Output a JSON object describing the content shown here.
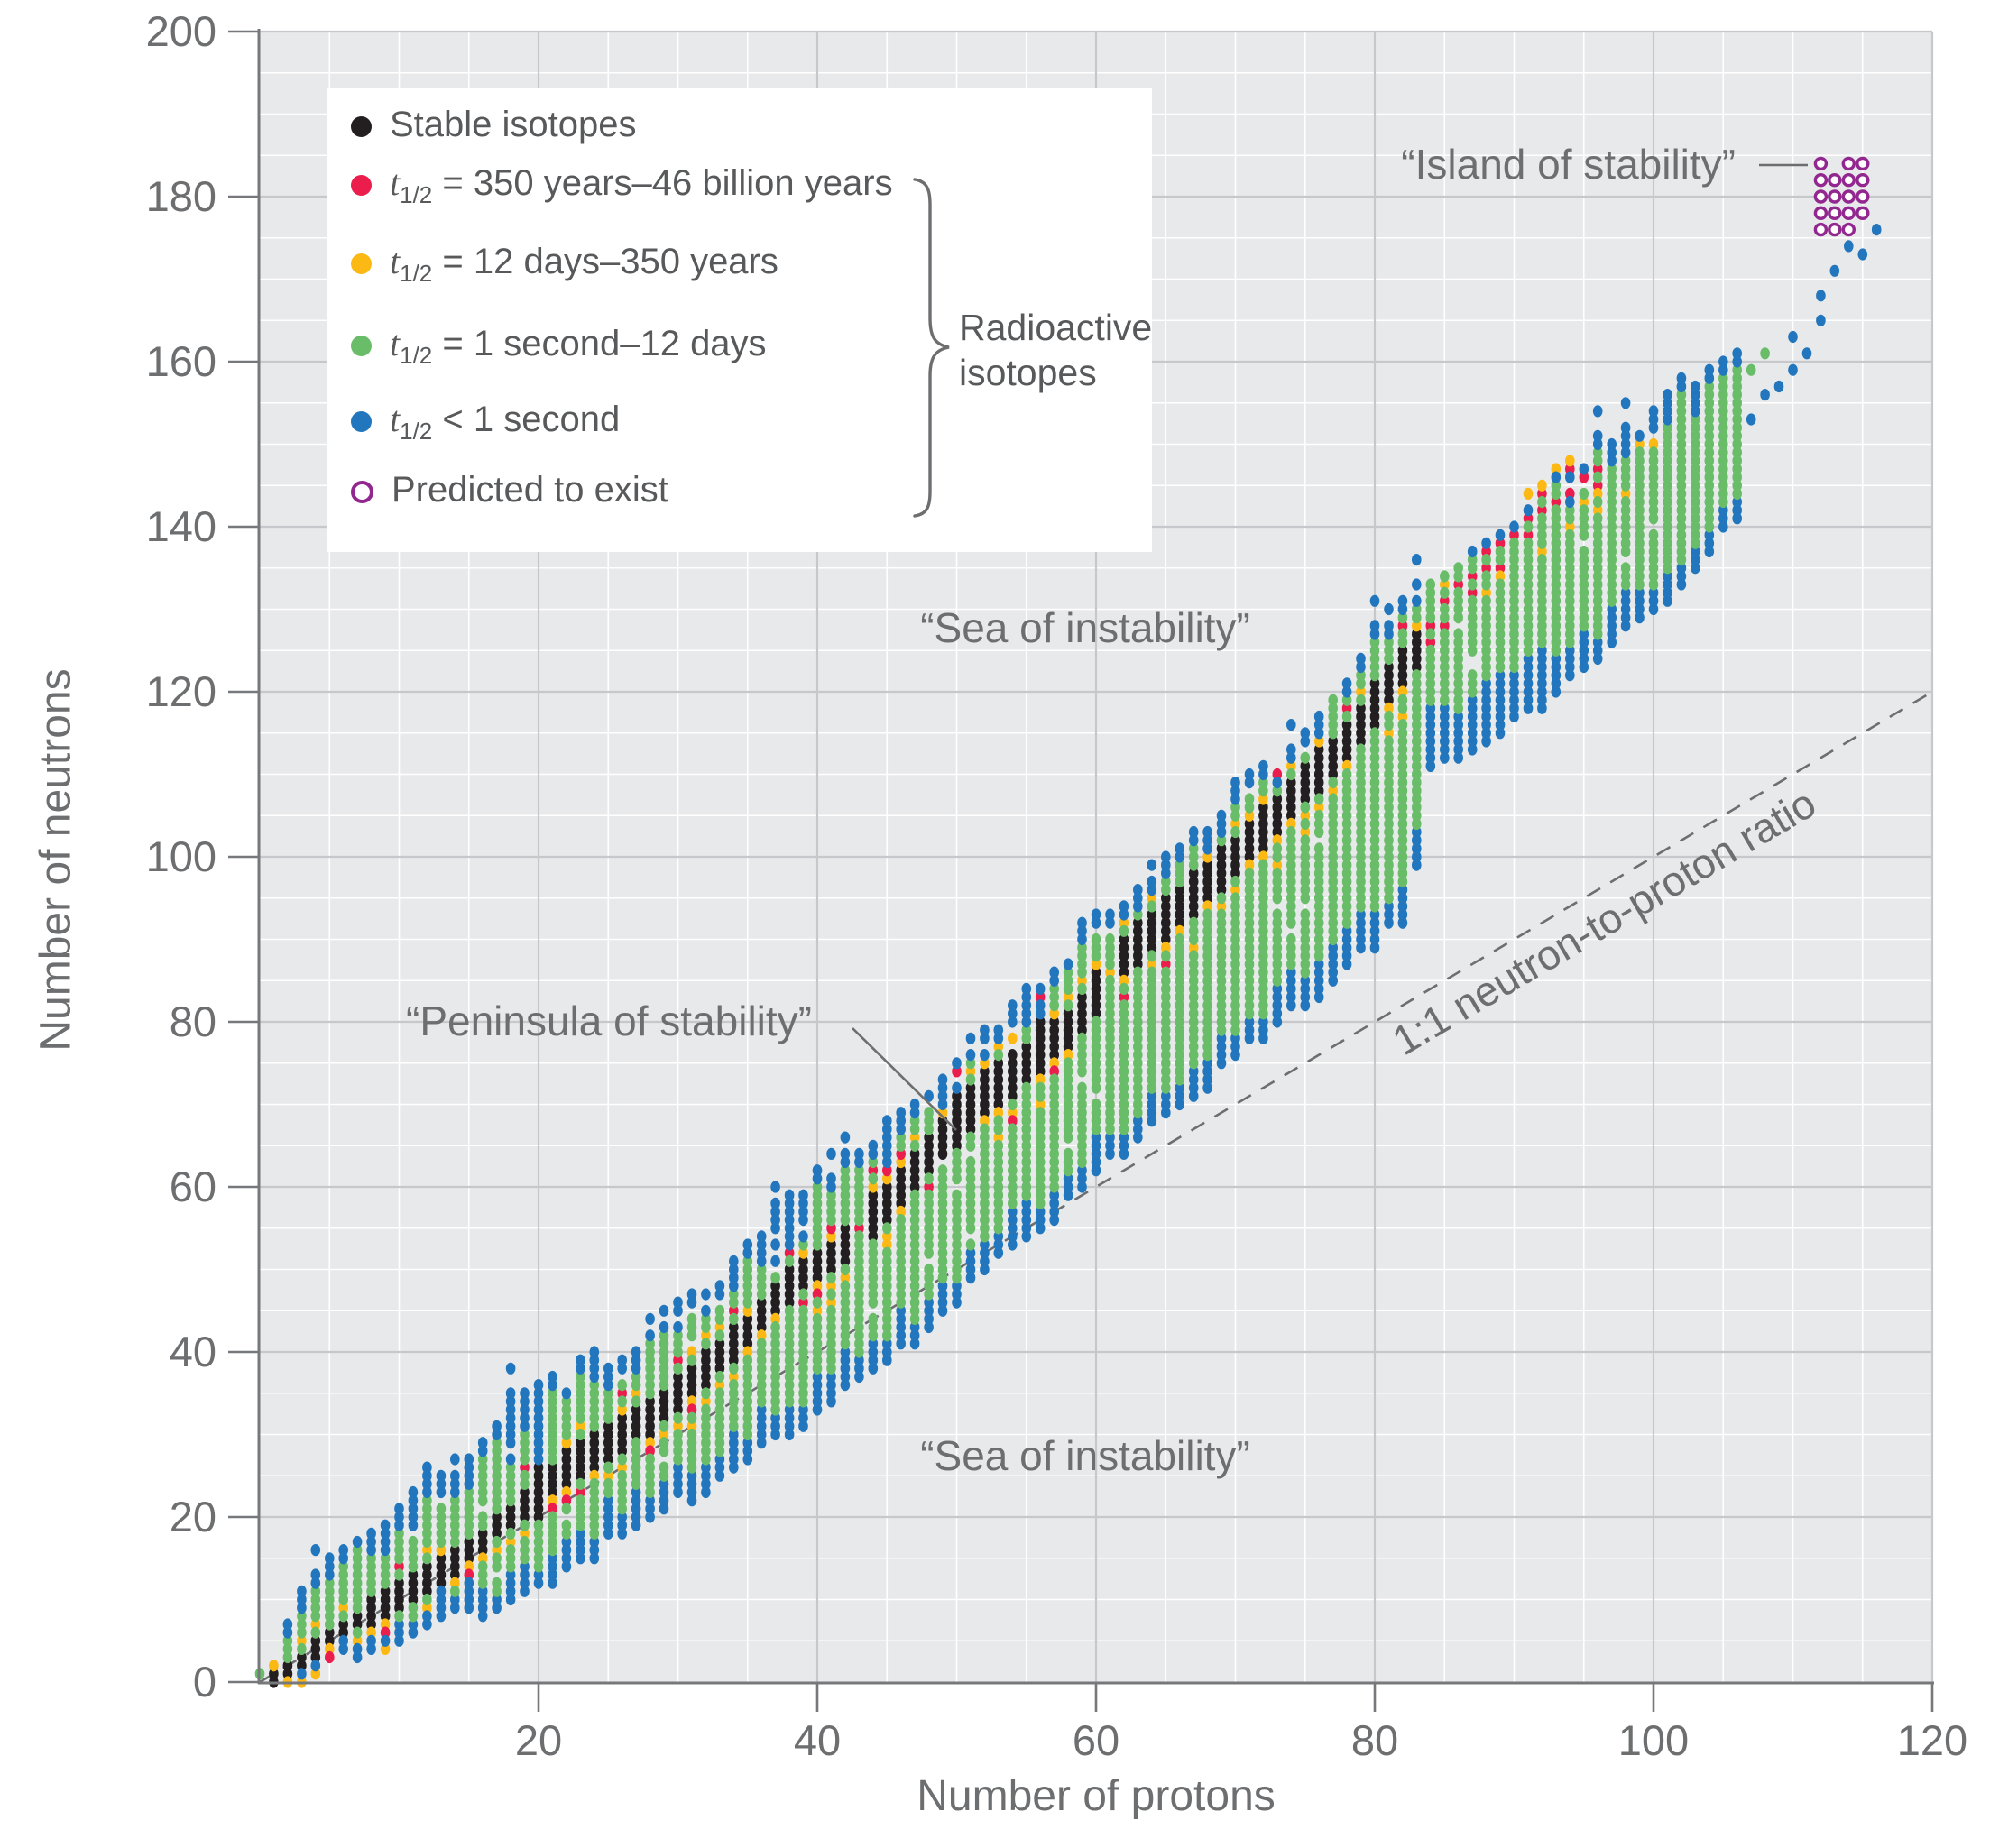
{
  "chart_data": {
    "type": "scatter",
    "title": "",
    "xlabel": "Number of protons",
    "ylabel": "Number of neutrons",
    "xlim": [
      0,
      120
    ],
    "ylim": [
      0,
      200
    ],
    "x_ticks": [
      20,
      40,
      60,
      80,
      100,
      120
    ],
    "y_ticks": [
      0,
      20,
      40,
      60,
      80,
      100,
      120,
      140,
      160,
      180,
      200
    ],
    "grid": {
      "major_step": 20,
      "minor_step": 5,
      "grid_on": true
    },
    "legend": {
      "position": "upper-left",
      "items": [
        {
          "key": "stable",
          "marker": "dot",
          "color": "#231f20",
          "t": "",
          "sub": "",
          "text": "Stable isotopes"
        },
        {
          "key": "red",
          "marker": "dot",
          "color": "#ea1d4d",
          "t": "t",
          "sub": "1/2",
          "text": " = 350 years–46 billion years"
        },
        {
          "key": "yellow",
          "marker": "dot",
          "color": "#fdb913",
          "t": "t",
          "sub": "1/2",
          "text": " = 12 days–350 years"
        },
        {
          "key": "green",
          "marker": "dot",
          "color": "#6abd68",
          "t": "t",
          "sub": "1/2",
          "text": " = 1 second–12 days"
        },
        {
          "key": "blue",
          "marker": "dot",
          "color": "#2176bd",
          "t": "t",
          "sub": "1/2",
          "text": " < 1 second"
        },
        {
          "key": "predicted",
          "marker": "ring",
          "color": "#92278f",
          "t": "",
          "sub": "",
          "text": "Predicted to exist"
        }
      ],
      "group_label_line1": "Radioactive",
      "group_label_line2": "isotopes"
    },
    "annotations": {
      "island": "“Island of stability”",
      "sea_top": "“Sea of instability”",
      "sea_bottom": "“Sea of instability”",
      "peninsula": "“Peninsula of stability”",
      "ratio_line": "1:1 neutron-to-proton ratio"
    },
    "reference_line": {
      "from": [
        0,
        0
      ],
      "to": [
        120,
        120
      ],
      "style": "dashed"
    },
    "colors": {
      "stable": "#231f20",
      "red": "#ea1d4d",
      "yellow": "#fdb913",
      "green": "#6abd68",
      "blue": "#2176bd",
      "predicted": "#92278f",
      "plot_bg": "#e8e9eb",
      "grid_major": "#c7c8cb",
      "grid_minor": "#ffffff",
      "axis": "#77787b",
      "text": "#6d6e70"
    },
    "band_model": {
      "comment": "Band of known nuclides, N vs Z, read from figure. Edges are piecewise-linear anchors [Z,N]; colors fill from outer blue fringe through green to central stable(black)/yellow/red chain.",
      "lo_anchors": [
        [
          0,
          1
        ],
        [
          1,
          0
        ],
        [
          2,
          1
        ],
        [
          4,
          2
        ],
        [
          6,
          3
        ],
        [
          8,
          4
        ],
        [
          10,
          5
        ],
        [
          14,
          8
        ],
        [
          18,
          10
        ],
        [
          20,
          12
        ],
        [
          24,
          16
        ],
        [
          28,
          20
        ],
        [
          32,
          24
        ],
        [
          36,
          28
        ],
        [
          40,
          33
        ],
        [
          44,
          38
        ],
        [
          48,
          43
        ],
        [
          52,
          50
        ],
        [
          56,
          55
        ],
        [
          58,
          58
        ],
        [
          60,
          62
        ],
        [
          62,
          65
        ],
        [
          66,
          70
        ],
        [
          70,
          76
        ],
        [
          74,
          81
        ],
        [
          78,
          87
        ],
        [
          82,
          93
        ],
        [
          83,
          99
        ],
        [
          84,
          111
        ],
        [
          88,
          114
        ],
        [
          92,
          119
        ],
        [
          96,
          124
        ],
        [
          100,
          130
        ],
        [
          103,
          135
        ],
        [
          106,
          141
        ]
      ],
      "hi_anchors": [
        [
          0,
          1
        ],
        [
          1,
          3
        ],
        [
          2,
          8
        ],
        [
          3,
          10
        ],
        [
          4,
          12
        ],
        [
          6,
          15
        ],
        [
          8,
          18
        ],
        [
          10,
          22
        ],
        [
          14,
          26
        ],
        [
          18,
          33
        ],
        [
          20,
          35
        ],
        [
          24,
          38
        ],
        [
          28,
          42
        ],
        [
          30,
          45
        ],
        [
          34,
          50
        ],
        [
          38,
          58
        ],
        [
          40,
          60
        ],
        [
          44,
          65
        ],
        [
          48,
          71
        ],
        [
          50,
          76
        ],
        [
          54,
          82
        ],
        [
          58,
          88
        ],
        [
          60,
          92
        ],
        [
          64,
          97
        ],
        [
          68,
          103
        ],
        [
          70,
          107
        ],
        [
          74,
          112
        ],
        [
          78,
          121
        ],
        [
          82,
          132
        ],
        [
          86,
          135
        ],
        [
          90,
          140
        ],
        [
          94,
          146
        ],
        [
          98,
          152
        ],
        [
          102,
          156
        ],
        [
          104,
          158
        ],
        [
          106,
          160
        ]
      ],
      "stable_anchors": [
        [
          1,
          0.5
        ],
        [
          2,
          1.5
        ],
        [
          6,
          6.5
        ],
        [
          10,
          10.5
        ],
        [
          14,
          14.5
        ],
        [
          18,
          20
        ],
        [
          22,
          26
        ],
        [
          26,
          30
        ],
        [
          30,
          35
        ],
        [
          34,
          41
        ],
        [
          38,
          48
        ],
        [
          42,
          53
        ],
        [
          46,
          60
        ],
        [
          50,
          68
        ],
        [
          54,
          74
        ],
        [
          58,
          79
        ],
        [
          62,
          88
        ],
        [
          66,
          94
        ],
        [
          70,
          100
        ],
        [
          74,
          107
        ],
        [
          78,
          114
        ],
        [
          82,
          123
        ],
        [
          83,
          125
        ]
      ],
      "stable_z_max": 83,
      "stable_gaps": [
        43,
        61
      ],
      "red_chain_anchors": [
        [
          84,
          128
        ],
        [
          86,
          132
        ],
        [
          88,
          135
        ],
        [
          90,
          139
        ],
        [
          92,
          142
        ],
        [
          94,
          145
        ],
        [
          96,
          147
        ]
      ],
      "blue_spike_z": [
        11,
        18,
        19,
        20,
        37,
        38,
        39,
        45,
        54,
        55,
        56,
        76
      ],
      "z_max": 106,
      "seed": 7
    },
    "neutron_point": [
      0,
      1
    ],
    "tritium_point": [
      1,
      2
    ],
    "trail_points": [
      [
        104,
        149
      ],
      [
        105,
        151
      ],
      [
        106,
        154
      ],
      [
        106,
        157
      ],
      [
        107,
        153
      ],
      [
        108,
        156
      ],
      [
        109,
        157
      ],
      [
        110,
        159
      ],
      [
        111,
        161
      ],
      [
        110,
        163
      ],
      [
        112,
        165
      ],
      [
        112,
        168
      ],
      [
        113,
        171
      ],
      [
        115,
        173
      ],
      [
        114,
        174
      ],
      [
        116,
        176
      ]
    ],
    "extra_green_points": [
      [
        107,
        159
      ],
      [
        108,
        161
      ]
    ],
    "island_points": [
      [
        112,
        184
      ],
      [
        114,
        184
      ],
      [
        115,
        184
      ],
      [
        112,
        182
      ],
      [
        113,
        182
      ],
      [
        114,
        182
      ],
      [
        115,
        182
      ],
      [
        112,
        180
      ],
      [
        113,
        180
      ],
      [
        114,
        180
      ],
      [
        115,
        180
      ],
      [
        112,
        178
      ],
      [
        113,
        178
      ],
      [
        114,
        178
      ],
      [
        115,
        178
      ],
      [
        112,
        176
      ],
      [
        113,
        176
      ],
      [
        114,
        176
      ]
    ]
  }
}
